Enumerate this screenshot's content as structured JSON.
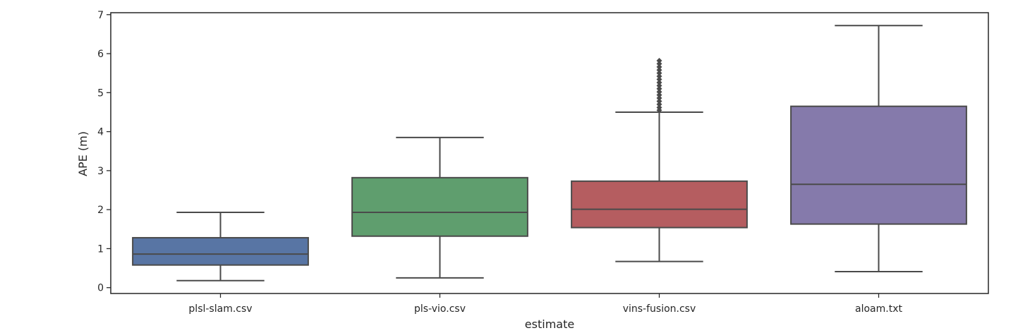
{
  "chart_data": {
    "type": "box",
    "title": "",
    "xlabel": "estimate",
    "ylabel": "APE (m)",
    "ylim": [
      -0.15,
      7.05
    ],
    "yticks": [
      0,
      1,
      2,
      3,
      4,
      5,
      6,
      7
    ],
    "ytick_labels": [
      "0",
      "1",
      "2",
      "3",
      "4",
      "5",
      "6",
      "7"
    ],
    "grid": false,
    "categories": [
      "plsl-slam.csv",
      "pls-vio.csv",
      "vins-fusion.csv",
      "aloam.txt"
    ],
    "boxes": [
      {
        "category": "plsl-slam.csv",
        "color": "#5875A4",
        "whisker_low": 0.18,
        "q1": 0.58,
        "median": 0.86,
        "q3": 1.28,
        "whisker_high": 1.93,
        "outliers": []
      },
      {
        "category": "pls-vio.csv",
        "color": "#5F9E6E",
        "whisker_low": 0.25,
        "q1": 1.32,
        "median": 1.93,
        "q3": 2.82,
        "whisker_high": 3.85,
        "outliers": []
      },
      {
        "category": "vins-fusion.csv",
        "color": "#B55D60",
        "whisker_low": 0.67,
        "q1": 1.54,
        "median": 2.01,
        "q3": 2.73,
        "whisker_high": 4.5,
        "outliers": [
          4.55,
          4.62,
          4.7,
          4.78,
          4.86,
          4.94,
          5.02,
          5.1,
          5.18,
          5.26,
          5.34,
          5.42,
          5.5,
          5.58,
          5.66,
          5.74,
          5.82
        ]
      },
      {
        "category": "aloam.txt",
        "color": "#857AAB",
        "whisker_low": 0.41,
        "q1": 1.63,
        "median": 2.65,
        "q3": 4.65,
        "whisker_high": 6.72,
        "outliers": []
      }
    ]
  }
}
